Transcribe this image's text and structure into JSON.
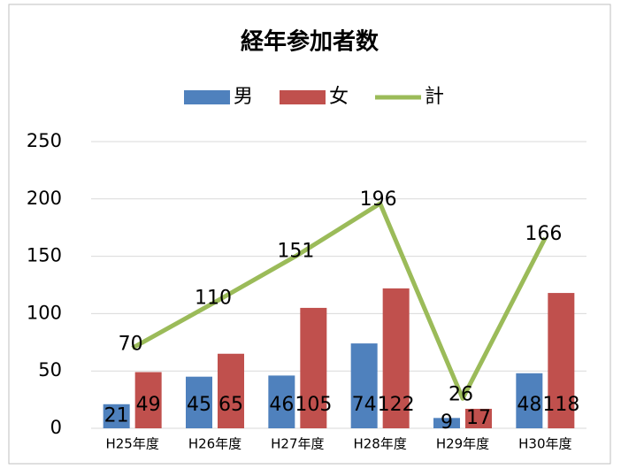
{
  "chart_data": {
    "type": "bar",
    "title": "経年参加者数",
    "categories": [
      "H25年度",
      "H26年度",
      "H27年度",
      "H28年度",
      "H29年度",
      "H30年度"
    ],
    "series": [
      {
        "name": "男",
        "type": "bar",
        "color": "#4f81bd",
        "values": [
          21,
          45,
          46,
          74,
          9,
          48
        ]
      },
      {
        "name": "女",
        "type": "bar",
        "color": "#c0504d",
        "values": [
          49,
          65,
          105,
          122,
          17,
          118
        ]
      },
      {
        "name": "計",
        "type": "line",
        "color": "#9bbb59",
        "values": [
          70,
          110,
          151,
          196,
          26,
          166
        ]
      }
    ],
    "ylim": [
      0,
      250
    ],
    "yticks": [
      0,
      50,
      100,
      150,
      200,
      250
    ],
    "grid": true,
    "legend": "top"
  }
}
